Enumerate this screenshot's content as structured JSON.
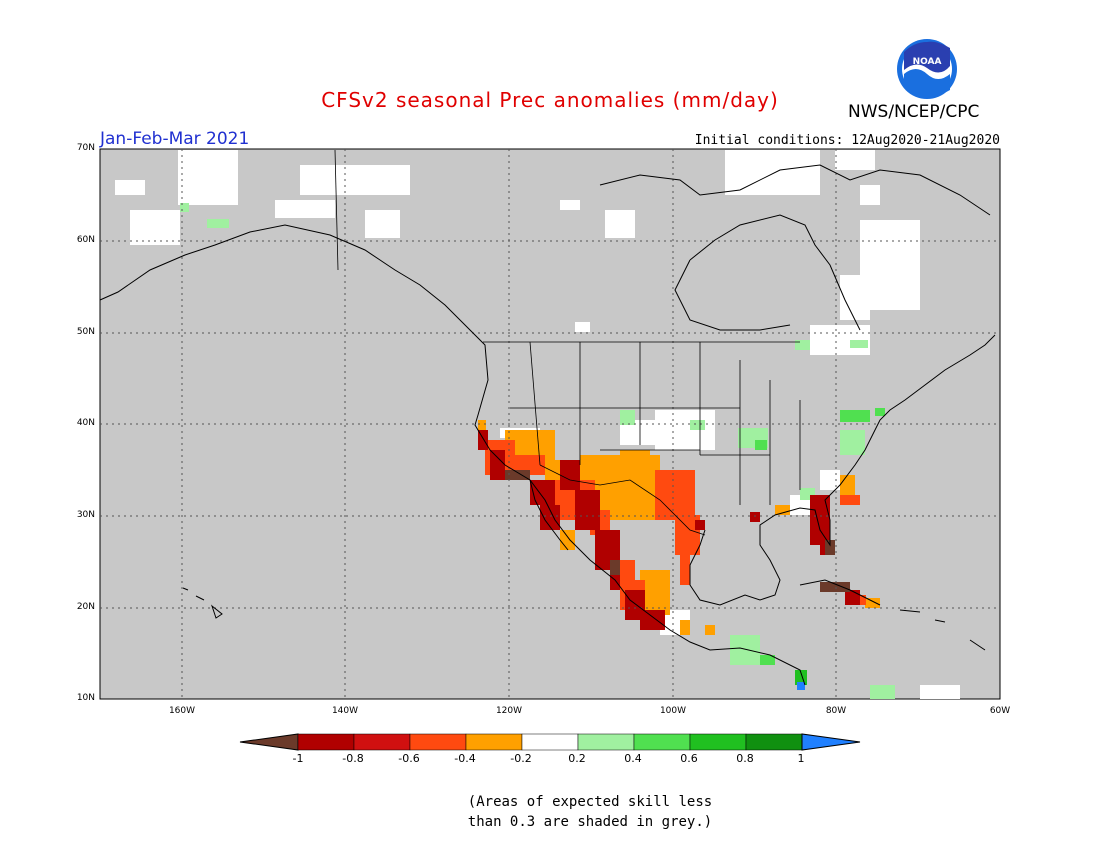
{
  "header": {
    "title": "CFSv2 seasonal Prec anomalies (mm/day)",
    "season": "Jan-Feb-Mar 2021",
    "initial_conditions": "Initial conditions: 12Aug2020-21Aug2020",
    "org": "NWS/NCEP/CPC",
    "logo_text": "NOAA"
  },
  "map": {
    "lat_labels": [
      "70N",
      "60N",
      "50N",
      "40N",
      "30N",
      "20N",
      "10N"
    ],
    "lon_labels": [
      "160W",
      "140W",
      "120W",
      "100W",
      "80W",
      "60W"
    ],
    "region": "North America",
    "lon_range": [
      -170,
      -60
    ],
    "lat_range": [
      10,
      70
    ],
    "grey_meaning": "low skill"
  },
  "colorbar": {
    "ticks": [
      "-1",
      "-0.8",
      "-0.6",
      "-0.4",
      "-0.2",
      "0.2",
      "0.4",
      "0.6",
      "0.8",
      "1"
    ],
    "colors": [
      "#6b3a2a",
      "#b00000",
      "#d01010",
      "#ff4a10",
      "#ffa000",
      "#ffffff",
      "#a0f0a0",
      "#50e050",
      "#20c020",
      "#109010",
      "#2080ff"
    ]
  },
  "footnote": {
    "line1": "(Areas of expected skill less",
    "line2": "than 0.3 are shaded in grey.)"
  }
}
